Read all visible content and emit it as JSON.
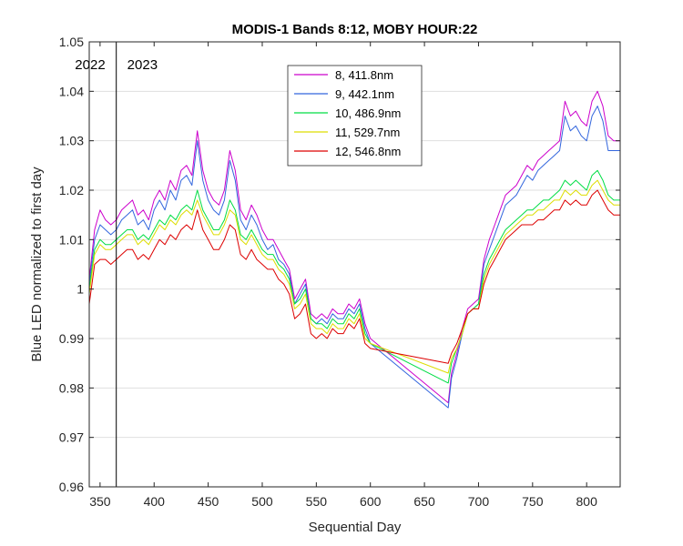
{
  "chart_data": {
    "type": "line",
    "title": "MODIS-1 Bands 8:12, MOBY HOUR:22",
    "xlabel": "Sequential Day",
    "ylabel": "Blue LED normalized to first day",
    "xlim": [
      340,
      831
    ],
    "ylim": [
      0.96,
      1.05
    ],
    "xticks": [
      350,
      400,
      450,
      500,
      550,
      600,
      650,
      700,
      750,
      800
    ],
    "yticks": [
      0.96,
      0.97,
      0.98,
      0.99,
      1,
      1.01,
      1.02,
      1.03,
      1.04,
      1.05
    ],
    "ytick_labels": [
      "0.96",
      "0.97",
      "0.98",
      "0.99",
      "1",
      "1.01",
      "1.02",
      "1.03",
      "1.04",
      "1.05"
    ],
    "grid": "horizontal",
    "legend_position": "top-center",
    "vline": {
      "x": 365,
      "left_label": "2022",
      "right_label": "2023"
    },
    "series": [
      {
        "name": "8, 411.8nm",
        "color": "#cc00cc",
        "x": [
          340,
          345,
          350,
          355,
          360,
          365,
          370,
          375,
          380,
          385,
          390,
          395,
          400,
          405,
          410,
          415,
          420,
          425,
          430,
          435,
          440,
          445,
          450,
          455,
          460,
          465,
          470,
          475,
          480,
          485,
          490,
          495,
          500,
          505,
          510,
          515,
          520,
          525,
          530,
          535,
          540,
          545,
          550,
          555,
          560,
          565,
          570,
          575,
          580,
          585,
          590,
          595,
          600,
          672,
          675,
          680,
          685,
          690,
          695,
          700,
          705,
          710,
          715,
          720,
          725,
          730,
          735,
          740,
          745,
          750,
          755,
          760,
          765,
          770,
          775,
          780,
          785,
          790,
          795,
          800,
          805,
          810,
          815,
          820,
          825,
          831
        ],
        "values": [
          1.002,
          1.012,
          1.016,
          1.014,
          1.013,
          1.014,
          1.016,
          1.017,
          1.018,
          1.015,
          1.016,
          1.014,
          1.018,
          1.02,
          1.018,
          1.022,
          1.02,
          1.024,
          1.025,
          1.023,
          1.032,
          1.024,
          1.02,
          1.018,
          1.017,
          1.02,
          1.028,
          1.024,
          1.016,
          1.014,
          1.017,
          1.015,
          1.012,
          1.01,
          1.01,
          1.008,
          1.006,
          1.004,
          0.998,
          1.0,
          1.002,
          0.995,
          0.994,
          0.995,
          0.994,
          0.996,
          0.995,
          0.995,
          0.997,
          0.996,
          0.998,
          0.993,
          0.99,
          0.977,
          0.983,
          0.987,
          0.992,
          0.996,
          0.997,
          0.998,
          1.006,
          1.01,
          1.013,
          1.016,
          1.019,
          1.02,
          1.021,
          1.023,
          1.025,
          1.024,
          1.026,
          1.027,
          1.028,
          1.029,
          1.03,
          1.038,
          1.035,
          1.036,
          1.034,
          1.033,
          1.038,
          1.04,
          1.037,
          1.031,
          1.03,
          1.03
        ]
      },
      {
        "name": "9, 442.1nm",
        "color": "#3366dd",
        "x": [
          340,
          345,
          350,
          355,
          360,
          365,
          370,
          375,
          380,
          385,
          390,
          395,
          400,
          405,
          410,
          415,
          420,
          425,
          430,
          435,
          440,
          445,
          450,
          455,
          460,
          465,
          470,
          475,
          480,
          485,
          490,
          495,
          500,
          505,
          510,
          515,
          520,
          525,
          530,
          535,
          540,
          545,
          550,
          555,
          560,
          565,
          570,
          575,
          580,
          585,
          590,
          595,
          600,
          672,
          675,
          680,
          685,
          690,
          695,
          700,
          705,
          710,
          715,
          720,
          725,
          730,
          735,
          740,
          745,
          750,
          755,
          760,
          765,
          770,
          775,
          780,
          785,
          790,
          795,
          800,
          805,
          810,
          815,
          820,
          825,
          831
        ],
        "values": [
          1.001,
          1.01,
          1.013,
          1.012,
          1.011,
          1.012,
          1.014,
          1.015,
          1.016,
          1.013,
          1.014,
          1.012,
          1.016,
          1.018,
          1.016,
          1.02,
          1.018,
          1.022,
          1.023,
          1.021,
          1.03,
          1.022,
          1.018,
          1.016,
          1.015,
          1.018,
          1.026,
          1.022,
          1.014,
          1.012,
          1.015,
          1.013,
          1.01,
          1.008,
          1.009,
          1.006,
          1.005,
          1.003,
          0.997,
          0.999,
          1.001,
          0.994,
          0.993,
          0.994,
          0.993,
          0.995,
          0.994,
          0.994,
          0.996,
          0.995,
          0.997,
          0.992,
          0.989,
          0.976,
          0.982,
          0.986,
          0.991,
          0.995,
          0.996,
          0.997,
          1.005,
          1.008,
          1.011,
          1.014,
          1.017,
          1.018,
          1.019,
          1.021,
          1.023,
          1.022,
          1.024,
          1.025,
          1.026,
          1.027,
          1.028,
          1.035,
          1.032,
          1.033,
          1.031,
          1.03,
          1.035,
          1.037,
          1.034,
          1.028,
          1.028,
          1.028
        ]
      },
      {
        "name": "10, 486.9nm",
        "color": "#00dd44",
        "x": [
          340,
          345,
          350,
          355,
          360,
          365,
          370,
          375,
          380,
          385,
          390,
          395,
          400,
          405,
          410,
          415,
          420,
          425,
          430,
          435,
          440,
          445,
          450,
          455,
          460,
          465,
          470,
          475,
          480,
          485,
          490,
          495,
          500,
          505,
          510,
          515,
          520,
          525,
          530,
          535,
          540,
          545,
          550,
          555,
          560,
          565,
          570,
          575,
          580,
          585,
          590,
          595,
          600,
          672,
          675,
          680,
          685,
          690,
          695,
          700,
          705,
          710,
          715,
          720,
          725,
          730,
          735,
          740,
          745,
          750,
          755,
          760,
          765,
          770,
          775,
          780,
          785,
          790,
          795,
          800,
          805,
          810,
          815,
          820,
          825,
          831
        ],
        "values": [
          1.0,
          1.008,
          1.01,
          1.009,
          1.009,
          1.01,
          1.011,
          1.012,
          1.012,
          1.01,
          1.011,
          1.01,
          1.012,
          1.014,
          1.013,
          1.015,
          1.014,
          1.016,
          1.017,
          1.016,
          1.02,
          1.016,
          1.014,
          1.012,
          1.012,
          1.014,
          1.018,
          1.016,
          1.011,
          1.01,
          1.012,
          1.01,
          1.008,
          1.007,
          1.007,
          1.005,
          1.004,
          1.002,
          0.997,
          0.998,
          1.0,
          0.994,
          0.993,
          0.993,
          0.992,
          0.994,
          0.993,
          0.993,
          0.995,
          0.994,
          0.996,
          0.991,
          0.989,
          0.981,
          0.985,
          0.988,
          0.991,
          0.995,
          0.996,
          0.997,
          1.003,
          1.006,
          1.008,
          1.01,
          1.012,
          1.013,
          1.014,
          1.015,
          1.016,
          1.016,
          1.017,
          1.018,
          1.018,
          1.019,
          1.02,
          1.022,
          1.021,
          1.022,
          1.021,
          1.02,
          1.023,
          1.024,
          1.022,
          1.019,
          1.018,
          1.018
        ]
      },
      {
        "name": "11, 529.7nm",
        "color": "#dddd00",
        "x": [
          340,
          345,
          350,
          355,
          360,
          365,
          370,
          375,
          380,
          385,
          390,
          395,
          400,
          405,
          410,
          415,
          420,
          425,
          430,
          435,
          440,
          445,
          450,
          455,
          460,
          465,
          470,
          475,
          480,
          485,
          490,
          495,
          500,
          505,
          510,
          515,
          520,
          525,
          530,
          535,
          540,
          545,
          550,
          555,
          560,
          565,
          570,
          575,
          580,
          585,
          590,
          595,
          600,
          672,
          675,
          680,
          685,
          690,
          695,
          700,
          705,
          710,
          715,
          720,
          725,
          730,
          735,
          740,
          745,
          750,
          755,
          760,
          765,
          770,
          775,
          780,
          785,
          790,
          795,
          800,
          805,
          810,
          815,
          820,
          825,
          831
        ],
        "values": [
          0.999,
          1.007,
          1.009,
          1.008,
          1.008,
          1.009,
          1.01,
          1.011,
          1.011,
          1.009,
          1.01,
          1.009,
          1.011,
          1.013,
          1.012,
          1.014,
          1.013,
          1.015,
          1.016,
          1.015,
          1.018,
          1.015,
          1.013,
          1.011,
          1.011,
          1.013,
          1.016,
          1.015,
          1.01,
          1.009,
          1.011,
          1.009,
          1.007,
          1.006,
          1.006,
          1.004,
          1.003,
          1.001,
          0.996,
          0.997,
          0.999,
          0.993,
          0.992,
          0.992,
          0.991,
          0.993,
          0.992,
          0.992,
          0.994,
          0.993,
          0.995,
          0.99,
          0.989,
          0.983,
          0.986,
          0.988,
          0.991,
          0.995,
          0.996,
          0.996,
          1.002,
          1.005,
          1.007,
          1.009,
          1.011,
          1.012,
          1.013,
          1.014,
          1.015,
          1.015,
          1.016,
          1.016,
          1.017,
          1.018,
          1.018,
          1.02,
          1.019,
          1.02,
          1.019,
          1.019,
          1.021,
          1.022,
          1.02,
          1.018,
          1.017,
          1.017
        ]
      },
      {
        "name": "12, 546.8nm",
        "color": "#dd0000",
        "x": [
          340,
          345,
          350,
          355,
          360,
          365,
          370,
          375,
          380,
          385,
          390,
          395,
          400,
          405,
          410,
          415,
          420,
          425,
          430,
          435,
          440,
          445,
          450,
          455,
          460,
          465,
          470,
          475,
          480,
          485,
          490,
          495,
          500,
          505,
          510,
          515,
          520,
          525,
          530,
          535,
          540,
          545,
          550,
          555,
          560,
          565,
          570,
          575,
          580,
          585,
          590,
          595,
          600,
          672,
          675,
          680,
          685,
          690,
          695,
          700,
          705,
          710,
          715,
          720,
          725,
          730,
          735,
          740,
          745,
          750,
          755,
          760,
          765,
          770,
          775,
          780,
          785,
          790,
          795,
          800,
          805,
          810,
          815,
          820,
          825,
          831
        ],
        "values": [
          0.997,
          1.005,
          1.006,
          1.006,
          1.005,
          1.006,
          1.007,
          1.008,
          1.008,
          1.006,
          1.007,
          1.006,
          1.008,
          1.01,
          1.009,
          1.011,
          1.01,
          1.012,
          1.013,
          1.012,
          1.016,
          1.012,
          1.01,
          1.008,
          1.008,
          1.01,
          1.013,
          1.012,
          1.007,
          1.006,
          1.008,
          1.006,
          1.005,
          1.004,
          1.004,
          1.002,
          1.001,
          0.999,
          0.994,
          0.995,
          0.997,
          0.991,
          0.99,
          0.991,
          0.99,
          0.992,
          0.991,
          0.991,
          0.993,
          0.992,
          0.994,
          0.989,
          0.988,
          0.985,
          0.987,
          0.989,
          0.992,
          0.995,
          0.996,
          0.996,
          1.001,
          1.004,
          1.006,
          1.008,
          1.01,
          1.011,
          1.012,
          1.013,
          1.013,
          1.013,
          1.014,
          1.014,
          1.015,
          1.016,
          1.016,
          1.018,
          1.017,
          1.018,
          1.017,
          1.017,
          1.019,
          1.02,
          1.018,
          1.016,
          1.015,
          1.015
        ]
      }
    ]
  }
}
